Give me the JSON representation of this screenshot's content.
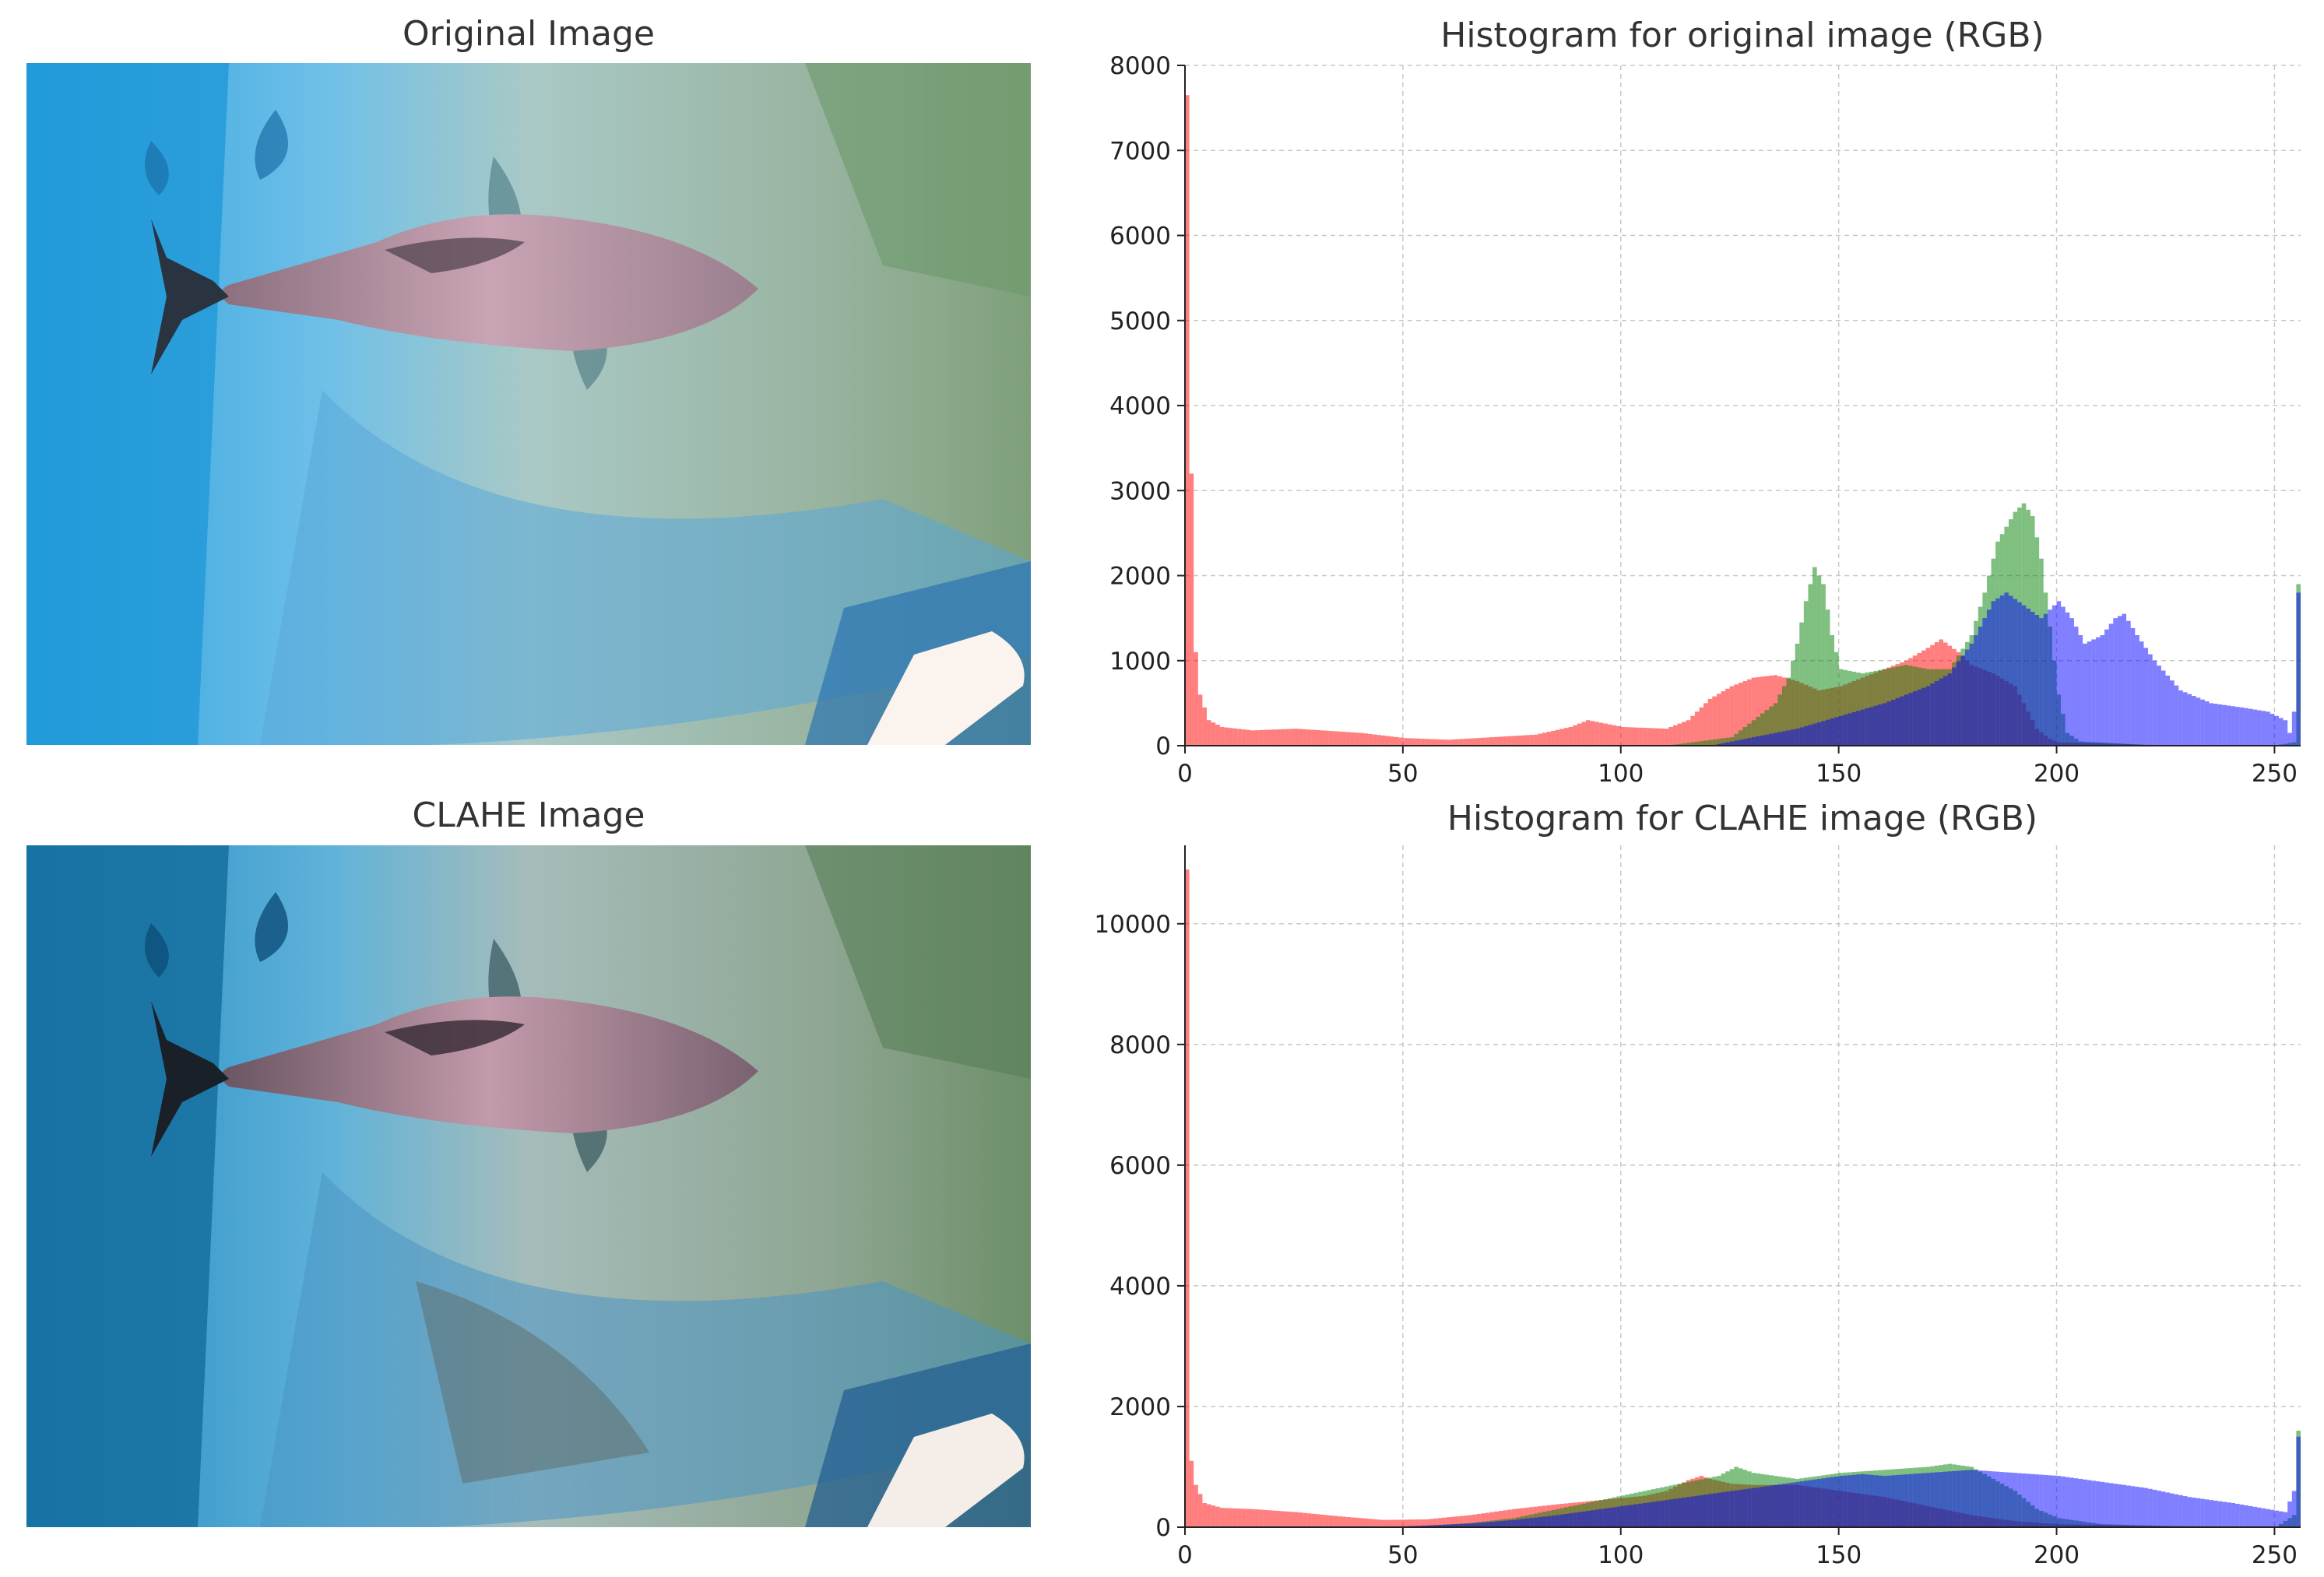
{
  "panels": {
    "original_title": "Original Image",
    "clahe_title": "CLAHE Image"
  },
  "chart_data": [
    {
      "type": "histogram",
      "title": "Histogram for original image (RGB)",
      "xlabel": "",
      "ylabel": "",
      "xlim": [
        0,
        256
      ],
      "ylim": [
        0,
        8000
      ],
      "xticks": [
        0,
        50,
        100,
        150,
        200,
        250
      ],
      "yticks": [
        0,
        1000,
        2000,
        3000,
        4000,
        5000,
        6000,
        7000,
        8000
      ],
      "grid": true,
      "series": [
        {
          "color": "#ff0000",
          "opacity": 0.5,
          "points": [
            [
              0,
              7650
            ],
            [
              1,
              3200
            ],
            [
              2,
              1100
            ],
            [
              3,
              600
            ],
            [
              5,
              300
            ],
            [
              8,
              220
            ],
            [
              15,
              180
            ],
            [
              25,
              200
            ],
            [
              40,
              150
            ],
            [
              50,
              90
            ],
            [
              60,
              70
            ],
            [
              70,
              100
            ],
            [
              80,
              130
            ],
            [
              88,
              220
            ],
            [
              92,
              300
            ],
            [
              100,
              220
            ],
            [
              110,
              200
            ],
            [
              115,
              300
            ],
            [
              120,
              550
            ],
            [
              125,
              700
            ],
            [
              130,
              800
            ],
            [
              135,
              830
            ],
            [
              140,
              760
            ],
            [
              145,
              650
            ],
            [
              150,
              700
            ],
            [
              155,
              800
            ],
            [
              160,
              900
            ],
            [
              165,
              1000
            ],
            [
              170,
              1150
            ],
            [
              173,
              1250
            ],
            [
              177,
              1100
            ],
            [
              180,
              950
            ],
            [
              185,
              850
            ],
            [
              190,
              700
            ],
            [
              192,
              500
            ],
            [
              195,
              200
            ],
            [
              198,
              80
            ],
            [
              200,
              40
            ],
            [
              220,
              10
            ],
            [
              250,
              0
            ],
            [
              255,
              0
            ]
          ]
        },
        {
          "color": "#008000",
          "opacity": 0.5,
          "points": [
            [
              0,
              0
            ],
            [
              110,
              0
            ],
            [
              125,
              100
            ],
            [
              130,
              300
            ],
            [
              135,
              500
            ],
            [
              138,
              800
            ],
            [
              140,
              1200
            ],
            [
              142,
              1700
            ],
            [
              144,
              2100
            ],
            [
              146,
              1900
            ],
            [
              148,
              1300
            ],
            [
              150,
              900
            ],
            [
              155,
              850
            ],
            [
              160,
              900
            ],
            [
              165,
              950
            ],
            [
              170,
              900
            ],
            [
              175,
              900
            ],
            [
              180,
              1300
            ],
            [
              183,
              1800
            ],
            [
              186,
              2400
            ],
            [
              190,
              2750
            ],
            [
              192,
              2850
            ],
            [
              194,
              2700
            ],
            [
              196,
              2200
            ],
            [
              198,
              1400
            ],
            [
              200,
              600
            ],
            [
              202,
              150
            ],
            [
              205,
              50
            ],
            [
              220,
              10
            ],
            [
              250,
              5
            ],
            [
              254,
              40
            ],
            [
              255,
              1900
            ]
          ]
        },
        {
          "color": "#0000ff",
          "opacity": 0.5,
          "points": [
            [
              0,
              0
            ],
            [
              120,
              0
            ],
            [
              130,
              100
            ],
            [
              140,
              200
            ],
            [
              150,
              350
            ],
            [
              160,
              500
            ],
            [
              170,
              700
            ],
            [
              175,
              850
            ],
            [
              180,
              1200
            ],
            [
              185,
              1700
            ],
            [
              188,
              1800
            ],
            [
              192,
              1650
            ],
            [
              196,
              1500
            ],
            [
              200,
              1700
            ],
            [
              203,
              1500
            ],
            [
              206,
              1200
            ],
            [
              210,
              1300
            ],
            [
              213,
              1500
            ],
            [
              215,
              1550
            ],
            [
              218,
              1300
            ],
            [
              222,
              1000
            ],
            [
              228,
              650
            ],
            [
              235,
              500
            ],
            [
              242,
              450
            ],
            [
              248,
              400
            ],
            [
              252,
              300
            ],
            [
              253,
              150
            ],
            [
              254,
              400
            ],
            [
              255,
              1800
            ]
          ]
        }
      ]
    },
    {
      "type": "histogram",
      "title": "Histogram for CLAHE image (RGB)",
      "xlabel": "",
      "ylabel": "",
      "xlim": [
        0,
        256
      ],
      "ylim": [
        0,
        11300
      ],
      "xticks": [
        0,
        50,
        100,
        150,
        200,
        250
      ],
      "yticks": [
        0,
        2000,
        4000,
        6000,
        8000,
        10000
      ],
      "grid": true,
      "series": [
        {
          "color": "#ff0000",
          "opacity": 0.5,
          "points": [
            [
              0,
              10900
            ],
            [
              1,
              1100
            ],
            [
              2,
              700
            ],
            [
              4,
              400
            ],
            [
              8,
              320
            ],
            [
              15,
              300
            ],
            [
              25,
              250
            ],
            [
              35,
              180
            ],
            [
              45,
              120
            ],
            [
              55,
              130
            ],
            [
              65,
              200
            ],
            [
              75,
              300
            ],
            [
              85,
              380
            ],
            [
              95,
              450
            ],
            [
              105,
              520
            ],
            [
              110,
              600
            ],
            [
              115,
              780
            ],
            [
              118,
              850
            ],
            [
              120,
              800
            ],
            [
              125,
              720
            ],
            [
              130,
              700
            ],
            [
              140,
              700
            ],
            [
              150,
              600
            ],
            [
              160,
              500
            ],
            [
              170,
              350
            ],
            [
              180,
              200
            ],
            [
              190,
              100
            ],
            [
              200,
              50
            ],
            [
              220,
              20
            ],
            [
              250,
              10
            ],
            [
              255,
              0
            ]
          ]
        },
        {
          "color": "#008000",
          "opacity": 0.5,
          "points": [
            [
              0,
              0
            ],
            [
              40,
              0
            ],
            [
              55,
              20
            ],
            [
              65,
              70
            ],
            [
              75,
              150
            ],
            [
              85,
              300
            ],
            [
              95,
              450
            ],
            [
              105,
              600
            ],
            [
              115,
              750
            ],
            [
              122,
              850
            ],
            [
              126,
              1000
            ],
            [
              130,
              900
            ],
            [
              135,
              850
            ],
            [
              140,
              800
            ],
            [
              145,
              850
            ],
            [
              150,
              900
            ],
            [
              160,
              950
            ],
            [
              170,
              1000
            ],
            [
              175,
              1050
            ],
            [
              180,
              1000
            ],
            [
              185,
              800
            ],
            [
              190,
              600
            ],
            [
              195,
              300
            ],
            [
              200,
              150
            ],
            [
              210,
              50
            ],
            [
              230,
              10
            ],
            [
              250,
              5
            ],
            [
              254,
              200
            ],
            [
              255,
              1600
            ]
          ]
        },
        {
          "color": "#0000ff",
          "opacity": 0.5,
          "points": [
            [
              0,
              0
            ],
            [
              45,
              0
            ],
            [
              55,
              30
            ],
            [
              65,
              60
            ],
            [
              75,
              120
            ],
            [
              85,
              200
            ],
            [
              95,
              300
            ],
            [
              105,
              400
            ],
            [
              115,
              500
            ],
            [
              125,
              600
            ],
            [
              135,
              700
            ],
            [
              145,
              800
            ],
            [
              150,
              850
            ],
            [
              155,
              880
            ],
            [
              160,
              850
            ],
            [
              170,
              900
            ],
            [
              180,
              950
            ],
            [
              190,
              900
            ],
            [
              200,
              850
            ],
            [
              210,
              750
            ],
            [
              220,
              650
            ],
            [
              230,
              500
            ],
            [
              240,
              400
            ],
            [
              248,
              300
            ],
            [
              252,
              250
            ],
            [
              254,
              600
            ],
            [
              255,
              1500
            ]
          ]
        }
      ]
    }
  ]
}
